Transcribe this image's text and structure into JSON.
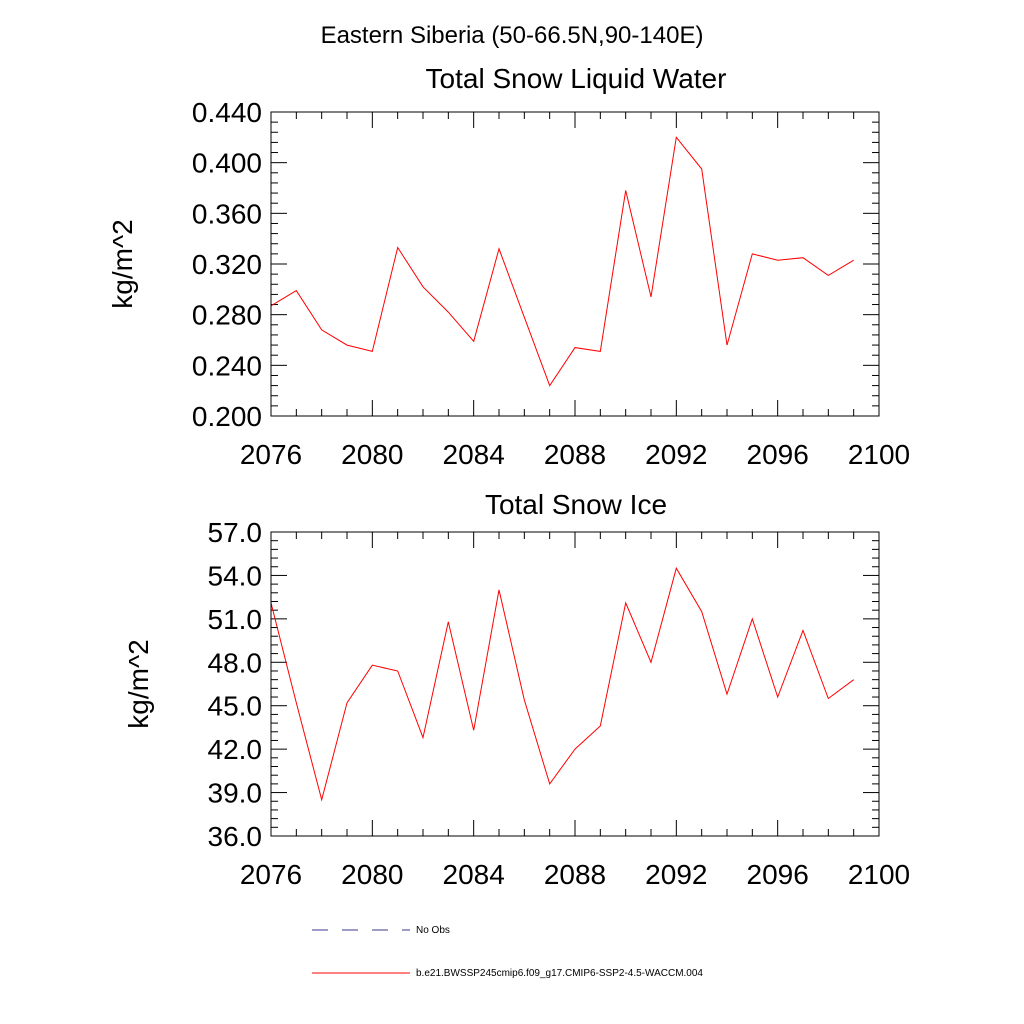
{
  "figure_title": "Eastern Siberia (50-66.5N,90-140E)",
  "legend": {
    "obs_label": "No Obs",
    "model_label": "b.e21.BWSSP245cmip6.f09_g17.CMIP6-SSP2-4.5-WACCM.004",
    "obs_color": "#3a3a8c",
    "model_color": "#ff0000"
  },
  "chart_data": [
    {
      "type": "line",
      "title": "Total Snow Liquid Water",
      "ylabel": "kg/m^2",
      "xlabel": "",
      "xlim": [
        2076,
        2100
      ],
      "ylim": [
        0.2,
        0.44
      ],
      "x_ticks": [
        "2076",
        "2080",
        "2084",
        "2088",
        "2092",
        "2096",
        "2100"
      ],
      "y_ticks": [
        "0.200",
        "0.240",
        "0.280",
        "0.320",
        "0.360",
        "0.400",
        "0.440"
      ],
      "series": [
        {
          "name": "b.e21.BWSSP245cmip6.f09_g17.CMIP6-SSP2-4.5-WACCM.004",
          "color": "#ff0000",
          "x": [
            2076,
            2077,
            2078,
            2079,
            2080,
            2081,
            2082,
            2083,
            2084,
            2085,
            2086,
            2087,
            2088,
            2089,
            2090,
            2091,
            2092,
            2093,
            2094,
            2095,
            2096,
            2097,
            2098,
            2099
          ],
          "y": [
            0.287,
            0.299,
            0.268,
            0.256,
            0.251,
            0.333,
            0.302,
            0.282,
            0.259,
            0.332,
            0.278,
            0.224,
            0.254,
            0.251,
            0.378,
            0.294,
            0.42,
            0.395,
            0.256,
            0.328,
            0.323,
            0.325,
            0.311,
            0.323
          ]
        }
      ]
    },
    {
      "type": "line",
      "title": "Total Snow Ice",
      "ylabel": "kg/m^2",
      "xlabel": "",
      "xlim": [
        2076,
        2100
      ],
      "ylim": [
        36,
        57
      ],
      "x_ticks": [
        "2076",
        "2080",
        "2084",
        "2088",
        "2092",
        "2096",
        "2100"
      ],
      "y_ticks": [
        "36.0",
        "39.0",
        "42.0",
        "45.0",
        "48.0",
        "51.0",
        "54.0",
        "57.0"
      ],
      "series": [
        {
          "name": "b.e21.BWSSP245cmip6.f09_g17.CMIP6-SSP2-4.5-WACCM.004",
          "color": "#ff0000",
          "x": [
            2076,
            2077,
            2078,
            2079,
            2080,
            2081,
            2082,
            2083,
            2084,
            2085,
            2086,
            2087,
            2088,
            2089,
            2090,
            2091,
            2092,
            2093,
            2094,
            2095,
            2096,
            2097,
            2098,
            2099
          ],
          "y": [
            52.1,
            45.2,
            38.5,
            45.2,
            47.8,
            47.4,
            42.8,
            50.8,
            43.3,
            53.0,
            45.4,
            39.6,
            42.0,
            43.6,
            52.1,
            48.0,
            54.5,
            51.5,
            45.8,
            51.0,
            45.6,
            50.2,
            45.5,
            46.8
          ]
        }
      ]
    }
  ]
}
